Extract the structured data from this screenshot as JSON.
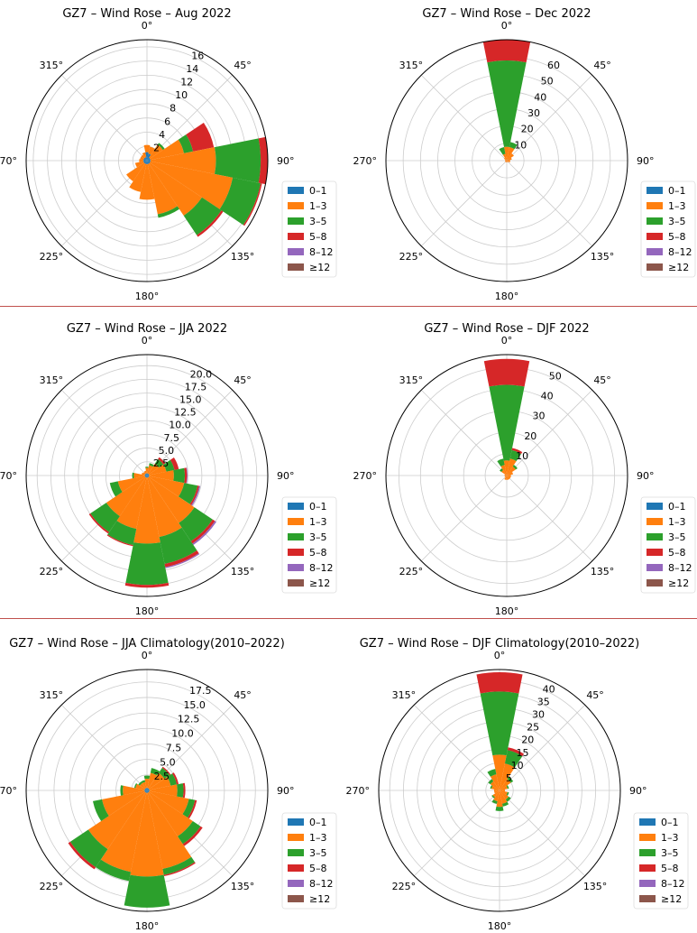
{
  "figure": {
    "colors": {
      "bins": [
        "#1f77b4",
        "#ff7f0e",
        "#2ca02c",
        "#d62728",
        "#9467bd",
        "#8c564b"
      ],
      "separator": "#c0504d",
      "grid": "#cccccc"
    }
  },
  "chart_data": [
    {
      "type": "wind_rose",
      "title": "GZ7 – Wind Rose – Aug 2022",
      "direction_labels": [
        "0°",
        "45°",
        "90°",
        "135°",
        "180°",
        "225°",
        "270°",
        "315°"
      ],
      "radial_ticks": [
        2,
        4,
        6,
        8,
        10,
        12,
        14,
        16
      ],
      "radial_tick_labels": [
        "2",
        "4",
        "6",
        "8",
        "10",
        "12",
        "14",
        "16"
      ],
      "rmax": 17,
      "legend": [
        "0–1",
        "1–3",
        "3–5",
        "5–8",
        "8–12",
        "≥12"
      ],
      "sector_width_deg": 22.5,
      "directions_deg": [
        0,
        22.5,
        45,
        67.5,
        90,
        112.5,
        135,
        157.5,
        180,
        202.5,
        225,
        247.5,
        270,
        292.5,
        315,
        337.5
      ],
      "stacks": [
        [
          1.2,
          1.0,
          0,
          0,
          0,
          0
        ],
        [
          1.0,
          1.0,
          0,
          0,
          0,
          0
        ],
        [
          0.5,
          2.2,
          0.3,
          0,
          0,
          0
        ],
        [
          0.5,
          4.8,
          1.3,
          3.0,
          0,
          0
        ],
        [
          0.5,
          9.2,
          6.3,
          3.0,
          0,
          0
        ],
        [
          0.5,
          11.8,
          4.0,
          0.2,
          0,
          0
        ],
        [
          0.5,
          8.8,
          3.3,
          0.3,
          0,
          0
        ],
        [
          0.5,
          7.2,
          0.5,
          0,
          0,
          0
        ],
        [
          0.5,
          5.0,
          0,
          0,
          0,
          0
        ],
        [
          0.5,
          4.0,
          0,
          0,
          0,
          0
        ],
        [
          0.5,
          3.0,
          0,
          0,
          0,
          0
        ],
        [
          0.5,
          1.2,
          0,
          0,
          0,
          0
        ],
        [
          0.5,
          0.6,
          0,
          0,
          0,
          0
        ],
        [
          0.5,
          0.5,
          0,
          0,
          0,
          0
        ],
        [
          0.5,
          0.5,
          0,
          0,
          0,
          0
        ],
        [
          0.5,
          0.7,
          0,
          0,
          0,
          0
        ]
      ]
    },
    {
      "type": "wind_rose",
      "title": "GZ7 – Wind Rose – Dec 2022",
      "direction_labels": [
        "0°",
        "45°",
        "90°",
        "135°",
        "180°",
        "225°",
        "270°",
        "315°"
      ],
      "radial_ticks": [
        10,
        20,
        30,
        40,
        50,
        60
      ],
      "radial_tick_labels": [
        "10",
        "20",
        "30",
        "40",
        "50",
        "60"
      ],
      "rmax": 70,
      "legend": [
        "0–1",
        "1–3",
        "3–5",
        "5–8",
        "8–12",
        "≥12"
      ],
      "sector_width_deg": 22.5,
      "directions_deg": [
        0,
        22.5,
        45,
        67.5,
        90,
        112.5,
        135,
        157.5,
        180,
        202.5,
        225,
        247.5,
        270,
        292.5,
        315,
        337.5
      ],
      "stacks": [
        [
          0,
          8,
          50,
          12,
          0,
          0
        ],
        [
          0,
          8,
          3,
          0,
          0,
          0
        ],
        [
          0,
          5,
          0,
          0,
          0,
          0
        ],
        [
          0,
          3,
          0,
          0,
          0,
          0
        ],
        [
          0,
          2,
          0,
          0,
          0,
          0
        ],
        [
          0,
          2,
          0,
          0,
          0,
          0
        ],
        [
          0,
          1,
          0,
          0,
          0,
          0
        ],
        [
          0,
          1,
          0,
          0,
          0,
          0
        ],
        [
          0,
          1,
          0,
          0,
          0,
          0
        ],
        [
          0,
          1,
          0,
          0,
          0,
          0
        ],
        [
          0,
          1,
          0,
          0,
          0,
          0
        ],
        [
          0,
          1,
          0,
          0,
          0,
          0
        ],
        [
          0,
          1,
          0,
          0,
          0,
          0
        ],
        [
          0,
          1,
          0,
          0,
          0,
          0
        ],
        [
          0,
          2,
          0,
          0,
          0,
          0
        ],
        [
          0,
          4,
          4,
          0,
          0,
          0
        ]
      ]
    },
    {
      "type": "wind_rose",
      "title": "GZ7 – Wind Rose – JJA 2022",
      "direction_labels": [
        "0°",
        "45°",
        "90°",
        "135°",
        "180°",
        "225°",
        "270°",
        "315°"
      ],
      "radial_ticks": [
        2.5,
        5.0,
        7.5,
        10.0,
        12.5,
        15.0,
        17.5,
        20.0
      ],
      "radial_tick_labels": [
        "2.5",
        "5.0",
        "7.5",
        "10.0",
        "12.5",
        "15.0",
        "17.5",
        "20.0"
      ],
      "rmax": 22,
      "legend": [
        "0–1",
        "1–3",
        "3–5",
        "5–8",
        "8–12",
        "≥12"
      ],
      "sector_width_deg": 22.5,
      "directions_deg": [
        0,
        22.5,
        45,
        67.5,
        90,
        112.5,
        135,
        157.5,
        180,
        202.5,
        225,
        247.5,
        270,
        292.5,
        315,
        337.5
      ],
      "stacks": [
        [
          0.4,
          1.0,
          0.2,
          0,
          0,
          0
        ],
        [
          0.4,
          1.5,
          0.4,
          0,
          0,
          0
        ],
        [
          0.4,
          2.2,
          1.0,
          0.4,
          0,
          0
        ],
        [
          0.4,
          3.2,
          1.5,
          0.8,
          0,
          0
        ],
        [
          0.4,
          4.5,
          2.0,
          0.4,
          0.1,
          0
        ],
        [
          0.4,
          6.5,
          2.5,
          0.3,
          0.2,
          0
        ],
        [
          0.4,
          10.0,
          4.0,
          0.5,
          0.3,
          0
        ],
        [
          0.4,
          11.0,
          5.0,
          0.6,
          0.2,
          0
        ],
        [
          0.4,
          12.0,
          7.5,
          0.5,
          0,
          0
        ],
        [
          0.4,
          9.5,
          3.0,
          0.2,
          0,
          0
        ],
        [
          0.4,
          8.5,
          3.5,
          0.3,
          0,
          0
        ],
        [
          0.4,
          5.0,
          1.5,
          0,
          0,
          0
        ],
        [
          0.4,
          2.0,
          0.3,
          0,
          0,
          0
        ],
        [
          0.4,
          0.6,
          0,
          0,
          0,
          0
        ],
        [
          0.4,
          0.4,
          0,
          0,
          0,
          0
        ],
        [
          0.4,
          0.5,
          0,
          0,
          0,
          0
        ]
      ]
    },
    {
      "type": "wind_rose",
      "title": "GZ7 – Wind Rose – DJF 2022",
      "direction_labels": [
        "0°",
        "45°",
        "90°",
        "135°",
        "180°",
        "225°",
        "270°",
        "315°"
      ],
      "radial_ticks": [
        10,
        20,
        30,
        40,
        50
      ],
      "radial_tick_labels": [
        "10",
        "20",
        "30",
        "40",
        "50"
      ],
      "rmax": 56,
      "legend": [
        "0–1",
        "1–3",
        "3–5",
        "5–8",
        "8–12",
        "≥12"
      ],
      "sector_width_deg": 22.5,
      "directions_deg": [
        0,
        22.5,
        45,
        67.5,
        90,
        112.5,
        135,
        157.5,
        180,
        202.5,
        225,
        247.5,
        270,
        292.5,
        315,
        337.5
      ],
      "stacks": [
        [
          0,
          7,
          35,
          12,
          0,
          0
        ],
        [
          0,
          8,
          4,
          1,
          0,
          0
        ],
        [
          0,
          5,
          1,
          0,
          0,
          0
        ],
        [
          0,
          3,
          0,
          0,
          0,
          0
        ],
        [
          0,
          2,
          0,
          0,
          0,
          0
        ],
        [
          0,
          2,
          0,
          0,
          0,
          0
        ],
        [
          0,
          2,
          0,
          0,
          0,
          0
        ],
        [
          0,
          2,
          0,
          0,
          0,
          0
        ],
        [
          0,
          2,
          0,
          0,
          0,
          0
        ],
        [
          0,
          2,
          0,
          0,
          0,
          0
        ],
        [
          0,
          1,
          0,
          0,
          0,
          0
        ],
        [
          0,
          1,
          0,
          0,
          0,
          0
        ],
        [
          0,
          1,
          0,
          0,
          0,
          0
        ],
        [
          0,
          1,
          0,
          0,
          0,
          0
        ],
        [
          0,
          3,
          1,
          0,
          0,
          0
        ],
        [
          0,
          5,
          3,
          0,
          0,
          0
        ]
      ]
    },
    {
      "type": "wind_rose",
      "title": "GZ7 – Wind Rose – JJA Climatology(2010–2022)",
      "direction_labels": [
        "0°",
        "45°",
        "90°",
        "135°",
        "180°",
        "225°",
        "270°",
        "315°"
      ],
      "radial_ticks": [
        2.5,
        5.0,
        7.5,
        10.0,
        12.5,
        15.0,
        17.5
      ],
      "radial_tick_labels": [
        "2.5",
        "5.0",
        "7.5",
        "10.0",
        "12.5",
        "15.0",
        "17.5"
      ],
      "rmax": 19.5,
      "legend": [
        "0–1",
        "1–3",
        "3–5",
        "5–8",
        "8–12",
        "≥12"
      ],
      "sector_width_deg": 22.5,
      "directions_deg": [
        0,
        22.5,
        45,
        67.5,
        90,
        112.5,
        135,
        157.5,
        180,
        202.5,
        225,
        247.5,
        270,
        292.5,
        315,
        337.5
      ],
      "stacks": [
        [
          0.4,
          1.5,
          0.5,
          0,
          0,
          0
        ],
        [
          0.4,
          2.5,
          0.8,
          0,
          0,
          0
        ],
        [
          0.4,
          3.0,
          1.0,
          0.2,
          0,
          0
        ],
        [
          0.4,
          3.5,
          1.0,
          0.3,
          0,
          0
        ],
        [
          0.4,
          4.5,
          1.0,
          0.3,
          0,
          0
        ],
        [
          0.4,
          6.5,
          1.0,
          0.3,
          0,
          0
        ],
        [
          0.4,
          8.5,
          1.5,
          0.4,
          0,
          0
        ],
        [
          0.4,
          12.5,
          1.0,
          0.2,
          0,
          0
        ],
        [
          0.4,
          13.5,
          5.0,
          0,
          0,
          0
        ],
        [
          0.4,
          13.0,
          1.5,
          0,
          0,
          0
        ],
        [
          0.4,
          11.0,
          3.5,
          0.4,
          0,
          0
        ],
        [
          0.4,
          7.0,
          1.5,
          0,
          0,
          0
        ],
        [
          0.4,
          3.5,
          0.4,
          0,
          0,
          0
        ],
        [
          0.4,
          1.5,
          0.2,
          0,
          0,
          0
        ],
        [
          0.4,
          1.0,
          0.3,
          0,
          0,
          0
        ],
        [
          0.4,
          1.0,
          0.3,
          0,
          0,
          0
        ]
      ]
    },
    {
      "type": "wind_rose",
      "title": "GZ7 – Wind Rose – DJF Climatology(2010–2022)",
      "direction_labels": [
        "0°",
        "45°",
        "90°",
        "135°",
        "180°",
        "225°",
        "270°",
        "315°"
      ],
      "radial_ticks": [
        5,
        10,
        15,
        20,
        25,
        30,
        35,
        40
      ],
      "radial_tick_labels": [
        "5",
        "10",
        "15",
        "20",
        "25",
        "30",
        "35",
        "40"
      ],
      "rmax": 44,
      "legend": [
        "0–1",
        "1–3",
        "3–5",
        "5–8",
        "8–12",
        "≥12"
      ],
      "sector_width_deg": 22.5,
      "directions_deg": [
        0,
        22.5,
        45,
        67.5,
        90,
        112.5,
        135,
        157.5,
        180,
        202.5,
        225,
        247.5,
        270,
        292.5,
        315,
        337.5
      ],
      "stacks": [
        [
          0,
          13,
          23,
          7,
          0,
          0
        ],
        [
          0,
          10,
          5,
          1,
          0,
          0
        ],
        [
          0,
          5,
          1,
          0,
          0,
          0
        ],
        [
          0,
          3,
          0.5,
          0,
          0,
          0
        ],
        [
          0,
          2,
          0,
          0,
          0,
          0
        ],
        [
          0,
          3,
          0.5,
          0,
          0,
          0
        ],
        [
          0,
          4,
          1,
          0,
          0,
          0
        ],
        [
          0,
          5,
          1,
          0,
          0,
          0
        ],
        [
          0,
          6,
          1.5,
          0,
          0,
          0
        ],
        [
          0,
          4,
          1,
          0,
          0,
          0
        ],
        [
          0,
          3,
          0.5,
          0,
          0,
          0
        ],
        [
          0,
          2,
          0,
          0,
          0,
          0
        ],
        [
          0,
          2,
          0,
          0,
          0,
          0
        ],
        [
          0,
          3,
          0.5,
          0,
          0,
          0
        ],
        [
          0,
          4,
          1,
          0,
          0,
          0
        ],
        [
          0,
          6,
          2,
          0,
          0,
          0
        ]
      ]
    }
  ]
}
